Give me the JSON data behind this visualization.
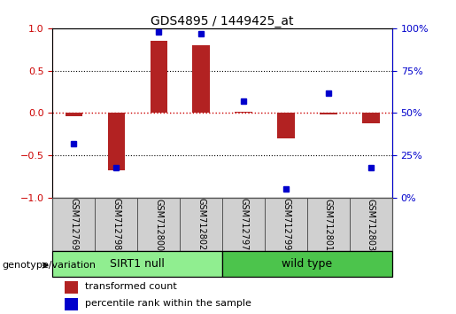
{
  "title": "GDS4895 / 1449425_at",
  "samples": [
    "GSM712769",
    "GSM712798",
    "GSM712800",
    "GSM712802",
    "GSM712797",
    "GSM712799",
    "GSM712801",
    "GSM712803"
  ],
  "transformed_count": [
    -0.04,
    -0.68,
    0.85,
    0.8,
    0.02,
    -0.3,
    -0.02,
    -0.12
  ],
  "percentile_rank": [
    32,
    18,
    98,
    97,
    57,
    5,
    62,
    18
  ],
  "groups": [
    {
      "label": "SIRT1 null",
      "start": 0,
      "end": 4,
      "color": "#90EE90"
    },
    {
      "label": "wild type",
      "start": 4,
      "end": 8,
      "color": "#4CC44C"
    }
  ],
  "bar_color": "#B22222",
  "dot_color": "#0000CC",
  "ylim_left": [
    -1,
    1
  ],
  "ylim_right": [
    0,
    100
  ],
  "yticks_left": [
    -1,
    -0.5,
    0,
    0.5,
    1
  ],
  "yticks_right": [
    0,
    25,
    50,
    75,
    100
  ],
  "hline_color": "#CC0000",
  "legend_bar_label": "transformed count",
  "legend_dot_label": "percentile rank within the sample",
  "genotype_label": "genotype/variation",
  "bar_width": 0.4,
  "dot_size": 5,
  "label_fontsize": 7,
  "title_fontsize": 10,
  "axis_fontsize": 8,
  "group_fontsize": 9,
  "legend_fontsize": 8
}
